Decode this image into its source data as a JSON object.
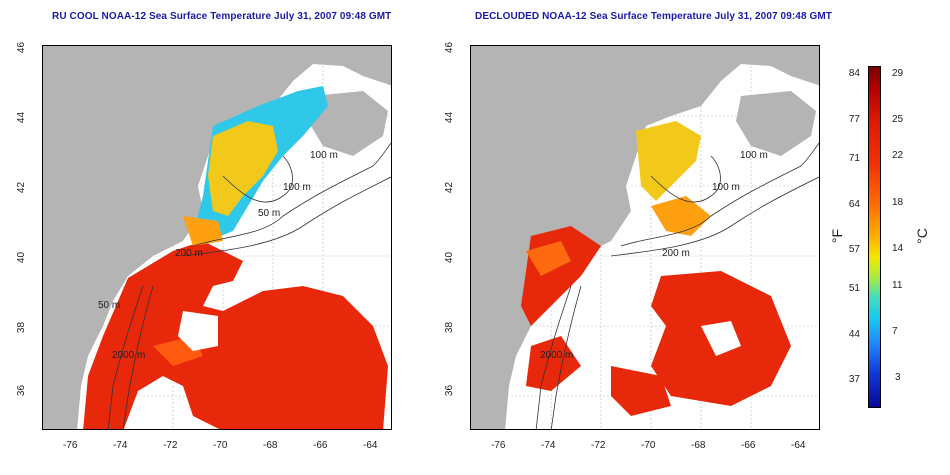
{
  "panels": [
    {
      "title": "RU COOL NOAA-12 Sea Surface Temperature July 31, 2007 09:48 GMT"
    },
    {
      "title": "DECLOUDED NOAA-12 Sea Surface Temperature July 31, 2007 09:48 GMT"
    }
  ],
  "axes": {
    "lat_ticks": [
      "46",
      "44",
      "42",
      "40",
      "38",
      "36"
    ],
    "lon_ticks": [
      "-76",
      "-74",
      "-72",
      "-70",
      "-68",
      "-66",
      "-64"
    ]
  },
  "contours": [
    "100 m",
    "100 m",
    "200 m",
    "50 m",
    "50 m",
    "2000 m"
  ],
  "colorbar": {
    "fahrenheit_label": "°F",
    "celsius_label": "°C",
    "fahrenheit_ticks": [
      "84",
      "77",
      "71",
      "64",
      "57",
      "51",
      "44",
      "37"
    ],
    "celsius_ticks": [
      "29",
      "25",
      "22",
      "18",
      "14",
      "11",
      "7",
      "3"
    ]
  },
  "colors": {
    "land": "#b4b4b4",
    "title": "#1a1aa8",
    "warm": "#e8280a",
    "mid": "#f2c91a",
    "cool": "#30c8e8"
  }
}
